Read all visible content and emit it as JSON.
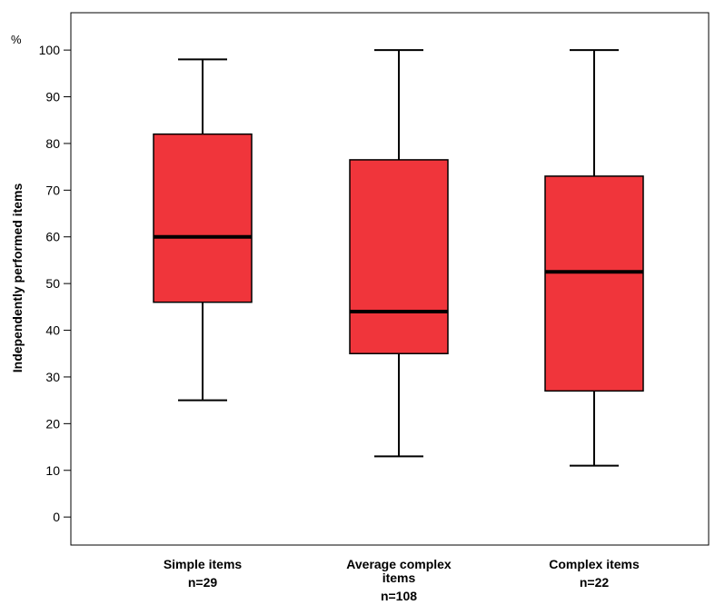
{
  "chart_data": {
    "type": "boxplot",
    "title": "",
    "xlabel": "",
    "ylabel": "Independently performed items",
    "y_unit": "%",
    "ylim": [
      -6,
      108
    ],
    "yticks": [
      0,
      10,
      20,
      30,
      40,
      50,
      60,
      70,
      80,
      90,
      100
    ],
    "grid": false,
    "box_color": "#f0353b",
    "categories": [
      {
        "label_lines": [
          "Simple items"
        ],
        "n": "n=29"
      },
      {
        "label_lines": [
          "Average complex",
          "items"
        ],
        "n": "n=108"
      },
      {
        "label_lines": [
          "Complex items"
        ],
        "n": "n=22"
      }
    ],
    "boxes": [
      {
        "min": 25,
        "q1": 46,
        "median": 60,
        "q3": 82,
        "max": 98
      },
      {
        "min": 13,
        "q1": 35,
        "median": 44,
        "q3": 76.5,
        "max": 100
      },
      {
        "min": 11,
        "q1": 27,
        "median": 52.5,
        "q3": 73,
        "max": 100
      }
    ]
  }
}
